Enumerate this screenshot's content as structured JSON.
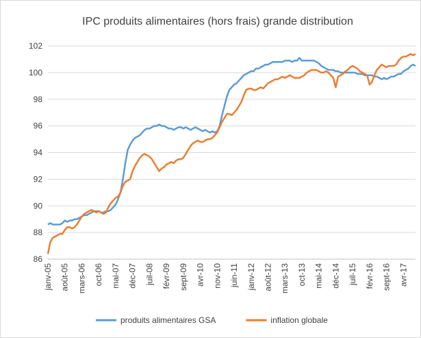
{
  "chart_data": {
    "type": "line",
    "title": "IPC produits alimentaires (hors frais) grande distribution",
    "categories": [
      "janv-05",
      null,
      null,
      null,
      null,
      null,
      null,
      "août-05",
      null,
      null,
      null,
      null,
      null,
      null,
      "mars-06",
      null,
      null,
      null,
      null,
      null,
      null,
      "oct-06",
      null,
      null,
      null,
      null,
      null,
      null,
      "mai-07",
      null,
      null,
      null,
      null,
      null,
      null,
      "déc-07",
      null,
      null,
      null,
      null,
      null,
      null,
      "juil-08",
      null,
      null,
      null,
      null,
      null,
      null,
      "févr-09",
      null,
      null,
      null,
      null,
      null,
      null,
      "sept-09",
      null,
      null,
      null,
      null,
      null,
      null,
      "avr-10",
      null,
      null,
      null,
      null,
      null,
      null,
      "nov-10",
      null,
      null,
      null,
      null,
      null,
      null,
      "juin-11",
      null,
      null,
      null,
      null,
      null,
      null,
      "janv-12",
      null,
      null,
      null,
      null,
      null,
      null,
      "août-12",
      null,
      null,
      null,
      null,
      null,
      null,
      "mars-13",
      null,
      null,
      null,
      null,
      null,
      null,
      "oct-13",
      null,
      null,
      null,
      null,
      null,
      null,
      "mai-14",
      null,
      null,
      null,
      null,
      null,
      null,
      "déc-14",
      null,
      null,
      null,
      null,
      null,
      null,
      "juil-15",
      null,
      null,
      null,
      null,
      null,
      null,
      "févr-16",
      null,
      null,
      null,
      null,
      null,
      null,
      "sept-16",
      null,
      null,
      null,
      null,
      null,
      null,
      "avr-17",
      null,
      null,
      null,
      null,
      null
    ],
    "series": [
      {
        "name": "produits alimentaires GSA",
        "color": "#5b9bd5",
        "values": [
          88.6,
          88.7,
          88.6,
          88.6,
          88.6,
          88.6,
          88.7,
          88.9,
          88.8,
          88.9,
          88.9,
          89.0,
          89.0,
          89.1,
          89.2,
          89.3,
          89.3,
          89.4,
          89.5,
          89.6,
          89.6,
          89.6,
          89.5,
          89.5,
          89.6,
          89.6,
          89.7,
          89.9,
          90.1,
          90.5,
          91.0,
          92.0,
          93.2,
          94.2,
          94.6,
          94.9,
          95.1,
          95.2,
          95.3,
          95.5,
          95.7,
          95.8,
          95.8,
          95.9,
          96.0,
          96.0,
          96.1,
          96.0,
          96.0,
          95.9,
          95.8,
          95.8,
          95.7,
          95.8,
          95.9,
          95.9,
          95.8,
          95.9,
          95.8,
          95.7,
          95.8,
          95.9,
          95.8,
          95.7,
          95.6,
          95.7,
          95.6,
          95.5,
          95.6,
          95.5,
          95.6,
          96.0,
          96.8,
          97.5,
          98.2,
          98.7,
          98.9,
          99.1,
          99.2,
          99.4,
          99.6,
          99.8,
          99.9,
          100.0,
          100.1,
          100.1,
          100.3,
          100.3,
          100.4,
          100.5,
          100.6,
          100.6,
          100.7,
          100.8,
          100.8,
          100.8,
          100.8,
          100.8,
          100.9,
          100.9,
          100.9,
          100.8,
          100.9,
          100.9,
          101.1,
          100.9,
          100.9,
          100.9,
          100.9,
          100.9,
          100.9,
          100.8,
          100.7,
          100.5,
          100.4,
          100.3,
          100.2,
          100.2,
          100.2,
          100.1,
          100.1,
          100.0,
          100.0,
          100.0,
          100.0,
          100.0,
          100.0,
          100.0,
          99.9,
          99.9,
          99.9,
          99.8,
          99.8,
          99.8,
          99.8,
          99.7,
          99.7,
          99.6,
          99.5,
          99.6,
          99.5,
          99.6,
          99.7,
          99.7,
          99.8,
          99.9,
          99.9,
          100.1,
          100.2,
          100.3,
          100.5,
          100.6,
          100.5
        ]
      },
      {
        "name": "inflation globale",
        "color": "#ed7d31",
        "values": [
          86.4,
          87.3,
          87.6,
          87.7,
          87.8,
          87.9,
          87.9,
          88.2,
          88.4,
          88.4,
          88.3,
          88.4,
          88.6,
          88.9,
          89.2,
          89.4,
          89.5,
          89.6,
          89.7,
          89.6,
          89.5,
          89.6,
          89.5,
          89.4,
          89.5,
          89.9,
          90.2,
          90.4,
          90.6,
          90.7,
          91.0,
          91.5,
          91.8,
          91.9,
          92.0,
          92.6,
          93.0,
          93.3,
          93.6,
          93.8,
          93.9,
          93.8,
          93.7,
          93.5,
          93.2,
          92.9,
          92.6,
          92.8,
          92.9,
          93.1,
          93.2,
          93.3,
          93.2,
          93.4,
          93.5,
          93.5,
          93.6,
          93.9,
          94.2,
          94.5,
          94.7,
          94.8,
          94.9,
          94.8,
          94.8,
          94.9,
          95.0,
          95.0,
          95.1,
          95.3,
          95.5,
          95.9,
          96.3,
          96.6,
          96.9,
          96.9,
          96.8,
          97.0,
          97.2,
          97.5,
          97.8,
          98.3,
          98.7,
          98.8,
          98.8,
          98.7,
          98.7,
          98.8,
          98.9,
          98.8,
          99.0,
          99.2,
          99.3,
          99.4,
          99.5,
          99.5,
          99.6,
          99.7,
          99.6,
          99.7,
          99.8,
          99.7,
          99.6,
          99.6,
          99.6,
          99.7,
          99.8,
          100.0,
          100.1,
          100.2,
          100.2,
          100.2,
          100.1,
          100.0,
          100.0,
          100.1,
          100.0,
          99.8,
          99.6,
          98.9,
          99.7,
          99.8,
          99.9,
          100.1,
          100.2,
          100.4,
          100.5,
          100.4,
          100.3,
          100.1,
          100.0,
          99.9,
          99.8,
          99.1,
          99.3,
          99.8,
          100.2,
          100.4,
          100.6,
          100.5,
          100.4,
          100.5,
          100.5,
          100.5,
          100.6,
          100.9,
          101.1,
          101.2,
          101.2,
          101.3,
          101.4,
          101.3,
          101.4
        ]
      }
    ],
    "ylim": [
      86,
      102
    ],
    "yticks": [
      86,
      88,
      90,
      92,
      94,
      96,
      98,
      100,
      102
    ],
    "grid": true,
    "legend": "bottom"
  }
}
